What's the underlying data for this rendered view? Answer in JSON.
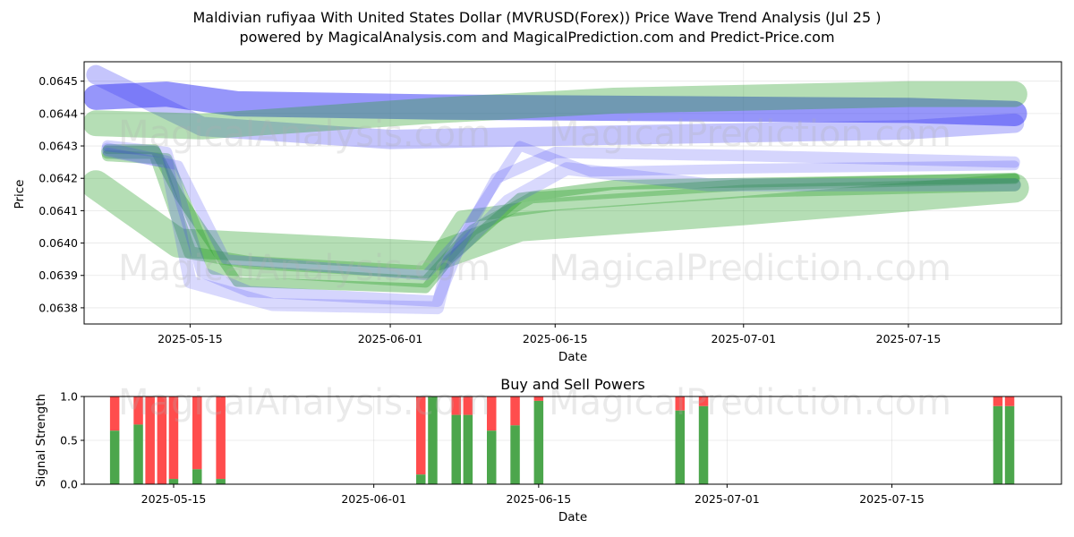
{
  "title_line1": "Maldivian rufiyaa With United States Dollar (MVRUSD(Forex)) Price Wave Trend Analysis (Jul 25 )",
  "title_line2": "powered by MagicalAnalysis.com and MagicalPrediction.com and Predict-Price.com",
  "watermarks": [
    "MagicalAnalysis.com",
    "MagicalPrediction.com"
  ],
  "colors": {
    "green": "#2ca02c",
    "blue": "#3f3ff5",
    "buy": "#4ca64c",
    "sell": "#ff4d4d"
  },
  "chart_data": [
    {
      "type": "line",
      "name": "price-wave-trend",
      "xlabel": "Date",
      "ylabel": "Price",
      "x_ticks": [
        "2025-05-15",
        "2025-06-01",
        "2025-06-15",
        "2025-07-01",
        "2025-07-15"
      ],
      "y_ticks": [
        "0.0638",
        "0.0639",
        "0.0640",
        "0.0641",
        "0.0642",
        "0.0643",
        "0.0644",
        "0.0645"
      ],
      "ylim": [
        0.06375,
        0.06456
      ],
      "x_range": [
        "2025-05-06",
        "2025-07-28"
      ],
      "grid": true,
      "series": [
        {
          "name": "blue-wide-upper",
          "color": "blue",
          "width": 7.8e-05,
          "opacity": 0.55,
          "points": [
            [
              "2025-05-07",
              0.06445
            ],
            [
              "2025-05-13",
              0.06446
            ],
            [
              "2025-05-19",
              0.06443
            ],
            [
              "2025-06-05",
              0.06442
            ],
            [
              "2025-07-15",
              0.06441
            ],
            [
              "2025-07-24",
              0.0644
            ]
          ]
        },
        {
          "name": "blue-wide-upper-2",
          "color": "blue",
          "width": 6e-05,
          "opacity": 0.3,
          "points": [
            [
              "2025-05-07",
              0.06452
            ],
            [
              "2025-05-16",
              0.06436
            ],
            [
              "2025-06-01",
              0.06432
            ],
            [
              "2025-06-15",
              0.06433
            ],
            [
              "2025-07-15",
              0.06435
            ],
            [
              "2025-07-24",
              0.06437
            ]
          ]
        },
        {
          "name": "green-wide-upper",
          "color": "green",
          "width": 8e-05,
          "opacity": 0.35,
          "points": [
            [
              "2025-05-07",
              0.06437
            ],
            [
              "2025-05-16",
              0.06436
            ],
            [
              "2025-06-05",
              0.06441
            ],
            [
              "2025-06-20",
              0.06444
            ],
            [
              "2025-07-15",
              0.06446
            ],
            [
              "2025-07-24",
              0.06446
            ]
          ]
        },
        {
          "name": "green-wide-lower",
          "color": "green",
          "width": 9e-05,
          "opacity": 0.35,
          "points": [
            [
              "2025-05-07",
              0.06418
            ],
            [
              "2025-05-14",
              0.064
            ],
            [
              "2025-06-05",
              0.06396
            ],
            [
              "2025-06-12",
              0.06405
            ],
            [
              "2025-07-01",
              0.0641
            ],
            [
              "2025-07-24",
              0.06417
            ]
          ]
        },
        {
          "name": "green-mid-1",
          "color": "green",
          "width": 4e-05,
          "opacity": 0.35,
          "points": [
            [
              "2025-05-08",
              0.06428
            ],
            [
              "2025-05-12",
              0.06428
            ],
            [
              "2025-05-15",
              0.06397
            ],
            [
              "2025-05-20",
              0.06394
            ],
            [
              "2025-06-04",
              0.06391
            ],
            [
              "2025-06-07",
              0.06408
            ],
            [
              "2025-06-15",
              0.06412
            ],
            [
              "2025-07-01",
              0.06416
            ],
            [
              "2025-07-24",
              0.06418
            ]
          ]
        },
        {
          "name": "green-mid-2",
          "color": "green",
          "width": 3.5e-05,
          "opacity": 0.35,
          "points": [
            [
              "2025-05-08",
              0.06427
            ],
            [
              "2025-05-13",
              0.06426
            ],
            [
              "2025-05-17",
              0.06392
            ],
            [
              "2025-06-04",
              0.06388
            ],
            [
              "2025-06-08",
              0.06404
            ],
            [
              "2025-06-13",
              0.06414
            ],
            [
              "2025-07-01",
              0.06418
            ],
            [
              "2025-07-24",
              0.0642
            ]
          ]
        },
        {
          "name": "teal-mid-3",
          "color": "green",
          "width": 3e-05,
          "opacity": 0.4,
          "points": [
            [
              "2025-05-08",
              0.06429
            ],
            [
              "2025-05-12",
              0.06429
            ],
            [
              "2025-05-14",
              0.06415
            ],
            [
              "2025-05-19",
              0.06388
            ],
            [
              "2025-06-04",
              0.06386
            ],
            [
              "2025-06-06",
              0.06395
            ],
            [
              "2025-06-12",
              0.06414
            ],
            [
              "2025-06-20",
              0.06418
            ],
            [
              "2025-07-24",
              0.0642
            ]
          ]
        },
        {
          "name": "blue-mid-1",
          "color": "blue",
          "width": 3.5e-05,
          "opacity": 0.22,
          "points": [
            [
              "2025-05-08",
              0.0643
            ],
            [
              "2025-05-13",
              0.06428
            ],
            [
              "2025-05-16",
              0.06391
            ],
            [
              "2025-05-20",
              0.06385
            ],
            [
              "2025-06-05",
              0.06382
            ],
            [
              "2025-06-07",
              0.064
            ],
            [
              "2025-06-10",
              0.0642
            ],
            [
              "2025-06-15",
              0.06428
            ],
            [
              "2025-07-01",
              0.06427
            ],
            [
              "2025-07-24",
              0.06425
            ]
          ]
        },
        {
          "name": "blue-mid-2",
          "color": "blue",
          "width": 4e-05,
          "opacity": 0.2,
          "points": [
            [
              "2025-05-08",
              0.06429
            ],
            [
              "2025-05-13",
              0.06425
            ],
            [
              "2025-05-15",
              0.06388
            ],
            [
              "2025-05-22",
              0.06381
            ],
            [
              "2025-06-05",
              0.0638
            ],
            [
              "2025-06-06",
              0.06395
            ],
            [
              "2025-06-11",
              0.06413
            ],
            [
              "2025-06-16",
              0.06423
            ],
            [
              "2025-06-28",
              0.06418
            ],
            [
              "2025-07-24",
              0.06418
            ]
          ]
        },
        {
          "name": "blue-mid-3",
          "color": "blue",
          "width": 3e-05,
          "opacity": 0.22,
          "points": [
            [
              "2025-05-08",
              0.06428
            ],
            [
              "2025-05-14",
              0.06424
            ],
            [
              "2025-05-18",
              0.06395
            ],
            [
              "2025-06-04",
              0.0639
            ],
            [
              "2025-06-07",
              0.06402
            ],
            [
              "2025-06-12",
              0.0643
            ],
            [
              "2025-06-18",
              0.06422
            ],
            [
              "2025-07-01",
              0.06423
            ],
            [
              "2025-07-24",
              0.06424
            ]
          ]
        }
      ]
    },
    {
      "type": "bar",
      "name": "buy-sell-powers",
      "title": "Buy and Sell Powers",
      "xlabel": "Date",
      "ylabel": "Signal Strength",
      "x_ticks": [
        "2025-05-15",
        "2025-06-01",
        "2025-06-15",
        "2025-07-01",
        "2025-07-15"
      ],
      "y_ticks": [
        "0.0",
        "0.5",
        "1.0"
      ],
      "ylim": [
        0,
        1
      ],
      "grid": true,
      "series": [
        {
          "name": "buy",
          "color": "buy"
        },
        {
          "name": "sell",
          "color": "sell"
        }
      ],
      "bars": [
        {
          "date": "2025-05-10",
          "buy": 0.61
        },
        {
          "date": "2025-05-12",
          "buy": 0.68
        },
        {
          "date": "2025-05-13",
          "buy": 0.0
        },
        {
          "date": "2025-05-14",
          "buy": 0.0
        },
        {
          "date": "2025-05-15",
          "buy": 0.06
        },
        {
          "date": "2025-05-17",
          "buy": 0.17
        },
        {
          "date": "2025-05-19",
          "buy": 0.06
        },
        {
          "date": "2025-06-05",
          "buy": 0.11
        },
        {
          "date": "2025-06-06",
          "buy": 1.0
        },
        {
          "date": "2025-06-08",
          "buy": 0.79
        },
        {
          "date": "2025-06-09",
          "buy": 0.79
        },
        {
          "date": "2025-06-11",
          "buy": 0.61
        },
        {
          "date": "2025-06-13",
          "buy": 0.67
        },
        {
          "date": "2025-06-15",
          "buy": 0.95
        },
        {
          "date": "2025-06-27",
          "buy": 0.84
        },
        {
          "date": "2025-06-29",
          "buy": 0.89
        },
        {
          "date": "2025-07-24",
          "buy": 0.89
        },
        {
          "date": "2025-07-25",
          "buy": 0.89
        }
      ]
    }
  ]
}
